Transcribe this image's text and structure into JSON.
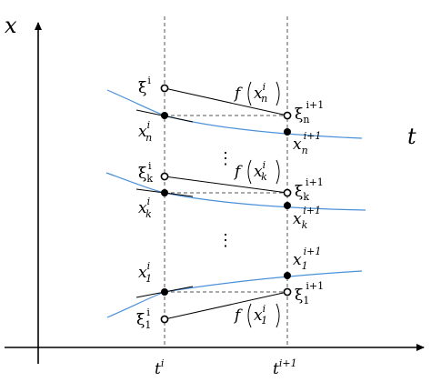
{
  "axes": {
    "x_label": "x",
    "t_label": "t",
    "tick_t_i": {
      "base": "t",
      "sup": "i"
    },
    "tick_t_i1": {
      "base": "t",
      "sup": "i+1"
    }
  },
  "colors": {
    "curve": "#4a90d9",
    "line": "#000000",
    "dashed": "#555555"
  },
  "labels": {
    "xi_n_i": {
      "base": "ξ",
      "sub": "n",
      "sup": "i"
    },
    "xi_k_i": {
      "base": "ξ",
      "sub": "k",
      "sup": "i"
    },
    "xi_1_i": {
      "base": "ξ",
      "sub": "1",
      "sup": "i"
    },
    "x_n_i": {
      "base": "x",
      "sub": "n",
      "sup": "i"
    },
    "x_k_i": {
      "base": "x",
      "sub": "k",
      "sup": "i"
    },
    "x_1_i": {
      "base": "x",
      "sub": "1",
      "sup": "i"
    },
    "xi_n_i1": {
      "base": "ξ",
      "sub": "n",
      "sup": "i+1"
    },
    "xi_k_i1": {
      "base": "ξ",
      "sub": "k",
      "sup": "i+1"
    },
    "xi_1_i1": {
      "base": "ξ",
      "sub": "1",
      "sup": "i+1"
    },
    "x_n_i1": {
      "base": "x",
      "sub": "n",
      "sup": "i+1"
    },
    "x_k_i1": {
      "base": "x",
      "sub": "k",
      "sup": "i+1"
    },
    "x_1_i1": {
      "base": "x",
      "sub": "1",
      "sup": "i+1"
    },
    "f_n": {
      "f": "f",
      "base": "x",
      "sub": "n",
      "sup": "i"
    },
    "f_k": {
      "f": "f",
      "base": "x",
      "sub": "k",
      "sup": "i"
    },
    "f_1": {
      "f": "f",
      "base": "x",
      "sub": "1",
      "sup": "i"
    }
  },
  "ellipsis": "⋮"
}
